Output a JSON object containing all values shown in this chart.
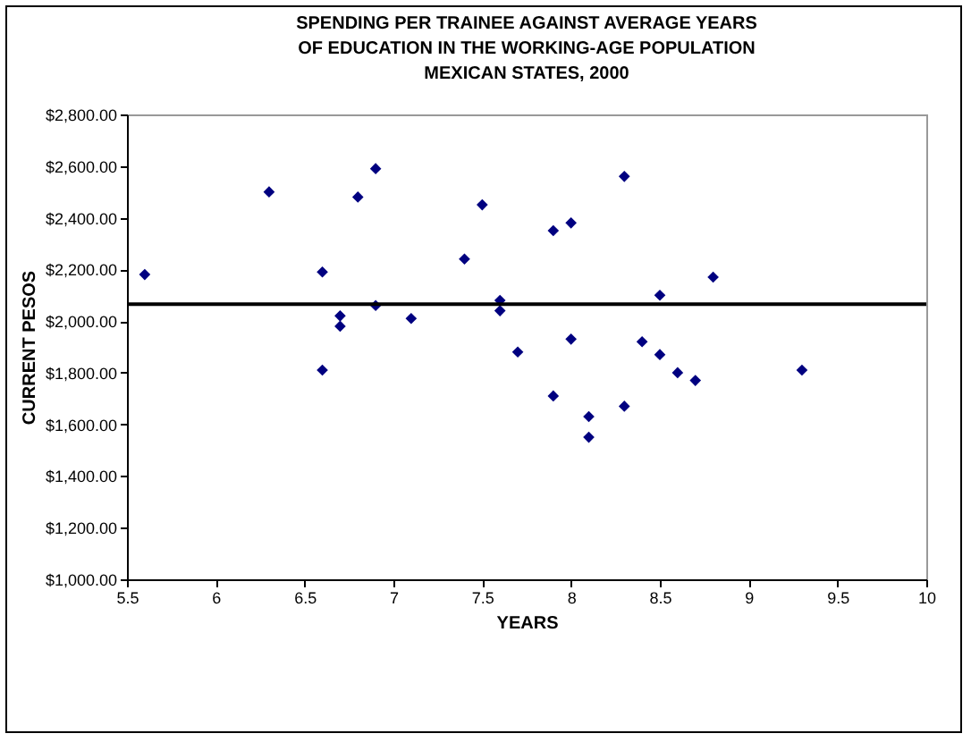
{
  "chart_data": {
    "type": "scatter",
    "title": "SPENDING PER TRAINEE AGAINST AVERAGE YEARS OF EDUCATION IN THE WORKING-AGE POPULATION MEXICAN STATES, 2000",
    "xlabel": "YEARS",
    "ylabel": "CURRENT PESOS",
    "series": [
      {
        "color": "#000080",
        "x": [
          5.6,
          6.3,
          6.6,
          6.6,
          6.7,
          6.7,
          6.8,
          6.9,
          6.9,
          7.1,
          7.4,
          7.5,
          7.6,
          7.6,
          7.7,
          7.9,
          7.9,
          8.0,
          8.0,
          8.1,
          8.1,
          8.3,
          8.3,
          8.4,
          8.5,
          8.5,
          8.6,
          8.7,
          8.8,
          9.3
        ],
        "values": [
          2180,
          2500,
          2190,
          1810,
          2020,
          1980,
          2480,
          2590,
          2060,
          2010,
          2240,
          2450,
          2080,
          2040,
          1880,
          2350,
          1710,
          2380,
          1930,
          1630,
          1550,
          2560,
          1670,
          1920,
          2100,
          1870,
          1800,
          1770,
          2170,
          1810
        ]
      }
    ],
    "marker": "diamond",
    "grid": false,
    "xlim": [
      5.5,
      10
    ],
    "xticks": [
      5.5,
      6,
      6.5,
      7,
      7.5,
      8,
      8.5,
      9,
      9.5,
      10
    ],
    "ylim": [
      1000,
      2800
    ],
    "yticks": [
      {
        "value": 1000,
        "label": "$1,000.00"
      },
      {
        "value": 1200,
        "label": "$1,200.00"
      },
      {
        "value": 1400,
        "label": "$1,400.00"
      },
      {
        "value": 1600,
        "label": "$1,600.00"
      },
      {
        "value": 1800,
        "label": "$1,800.00"
      },
      {
        "value": 2000,
        "label": "$2,000.00"
      },
      {
        "value": 2200,
        "label": "$2,200.00"
      },
      {
        "value": 2400,
        "label": "$2,400.00"
      },
      {
        "value": 2600,
        "label": "$2,600.00"
      },
      {
        "value": 2800,
        "label": "$2,800.00"
      }
    ],
    "ref_lines": [
      {
        "axis": "y",
        "value": 2065,
        "color": "#000000"
      }
    ]
  }
}
